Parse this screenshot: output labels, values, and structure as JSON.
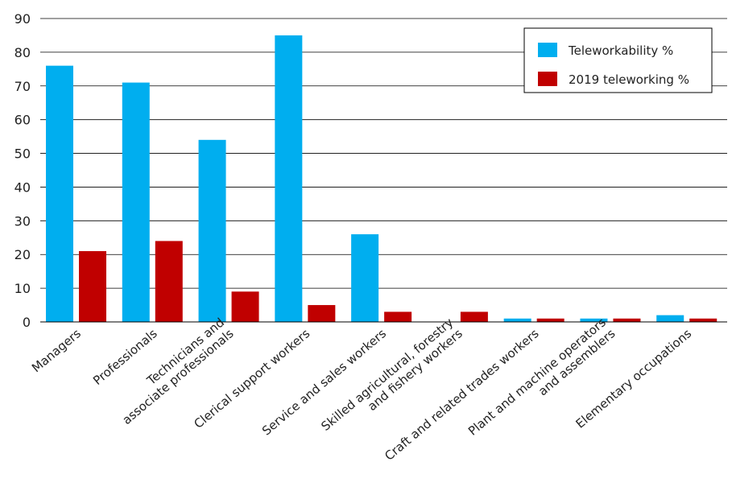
{
  "chart_data": {
    "type": "bar",
    "ylim": [
      0,
      90
    ],
    "yticks": [
      0,
      10,
      20,
      30,
      40,
      50,
      60,
      70,
      80,
      90
    ],
    "grid": true,
    "legend_position": "top-right",
    "categories": [
      [
        "Managers"
      ],
      [
        "Professionals"
      ],
      [
        "Technicians and",
        "associate professionals"
      ],
      [
        "Clerical support  workers"
      ],
      [
        "Service and sales workers"
      ],
      [
        "Skilled agricultural, forestry",
        "and fishery workers"
      ],
      [
        "Craft and related trades workers"
      ],
      [
        "Plant and machine operators",
        "and assemblers"
      ],
      [
        "Elementary occupations"
      ]
    ],
    "series": [
      {
        "name": "Teleworkability %",
        "color": "#00aeef",
        "values": [
          76,
          71,
          54,
          85,
          26,
          0,
          1,
          1,
          2
        ]
      },
      {
        "name": "2019 teleworking %",
        "color": "#c00000",
        "values": [
          21,
          24,
          9,
          5,
          3,
          3,
          1,
          1,
          1
        ]
      }
    ]
  }
}
